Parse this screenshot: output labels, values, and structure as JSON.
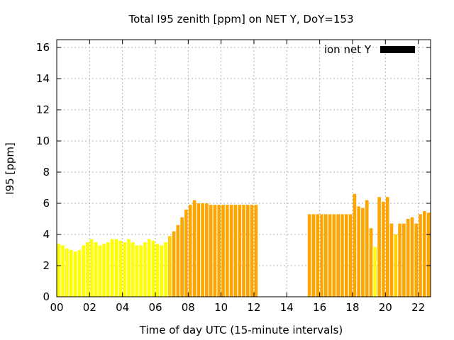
{
  "chart_data": {
    "type": "bar",
    "title": "Total I95 zenith [ppm] on NET Y, DoY=153",
    "xlabel": "Time of day UTC (15-minute intervals)",
    "ylabel": "I95 [ppm]",
    "xlim": [
      0,
      22.75
    ],
    "ylim": [
      0,
      16.5
    ],
    "xticks": [
      "00",
      "02",
      "04",
      "06",
      "08",
      "10",
      "12",
      "14",
      "16",
      "18",
      "20",
      "22"
    ],
    "yticks": [
      "0",
      "2",
      "4",
      "6",
      "8",
      "10",
      "12",
      "14",
      "16"
    ],
    "grid": true,
    "legend": {
      "label": "ion net Y",
      "position": "top-right"
    },
    "bar_width_hours": 0.2,
    "colors": {
      "yellow": "#ffff00",
      "lightorange": "#ffd000",
      "orange": "#ffa500",
      "legend_swatch": "#000000"
    },
    "bars": [
      {
        "x": 0.125,
        "y": 3.4,
        "c": "yellow"
      },
      {
        "x": 0.375,
        "y": 3.3,
        "c": "yellow"
      },
      {
        "x": 0.625,
        "y": 3.1,
        "c": "yellow"
      },
      {
        "x": 0.875,
        "y": 3.0,
        "c": "yellow"
      },
      {
        "x": 1.125,
        "y": 2.9,
        "c": "yellow"
      },
      {
        "x": 1.375,
        "y": 3.0,
        "c": "yellow"
      },
      {
        "x": 1.625,
        "y": 3.3,
        "c": "yellow"
      },
      {
        "x": 1.875,
        "y": 3.5,
        "c": "yellow"
      },
      {
        "x": 2.125,
        "y": 3.7,
        "c": "yellow"
      },
      {
        "x": 2.375,
        "y": 3.5,
        "c": "yellow"
      },
      {
        "x": 2.625,
        "y": 3.3,
        "c": "yellow"
      },
      {
        "x": 2.875,
        "y": 3.4,
        "c": "yellow"
      },
      {
        "x": 3.125,
        "y": 3.5,
        "c": "yellow"
      },
      {
        "x": 3.375,
        "y": 3.7,
        "c": "yellow"
      },
      {
        "x": 3.625,
        "y": 3.7,
        "c": "yellow"
      },
      {
        "x": 3.875,
        "y": 3.6,
        "c": "yellow"
      },
      {
        "x": 4.125,
        "y": 3.5,
        "c": "yellow"
      },
      {
        "x": 4.375,
        "y": 3.7,
        "c": "yellow"
      },
      {
        "x": 4.625,
        "y": 3.5,
        "c": "yellow"
      },
      {
        "x": 4.875,
        "y": 3.3,
        "c": "yellow"
      },
      {
        "x": 5.125,
        "y": 3.3,
        "c": "yellow"
      },
      {
        "x": 5.375,
        "y": 3.5,
        "c": "yellow"
      },
      {
        "x": 5.625,
        "y": 3.7,
        "c": "yellow"
      },
      {
        "x": 5.875,
        "y": 3.6,
        "c": "yellow"
      },
      {
        "x": 6.125,
        "y": 3.4,
        "c": "yellow"
      },
      {
        "x": 6.375,
        "y": 3.3,
        "c": "yellow"
      },
      {
        "x": 6.625,
        "y": 3.5,
        "c": "yellow"
      },
      {
        "x": 6.875,
        "y": 3.9,
        "c": "lightorange"
      },
      {
        "x": 7.125,
        "y": 4.2,
        "c": "orange"
      },
      {
        "x": 7.375,
        "y": 4.6,
        "c": "orange"
      },
      {
        "x": 7.625,
        "y": 5.1,
        "c": "orange"
      },
      {
        "x": 7.875,
        "y": 5.6,
        "c": "orange"
      },
      {
        "x": 8.125,
        "y": 5.9,
        "c": "orange"
      },
      {
        "x": 8.375,
        "y": 6.2,
        "c": "orange"
      },
      {
        "x": 8.625,
        "y": 6.0,
        "c": "orange"
      },
      {
        "x": 8.875,
        "y": 6.0,
        "c": "orange"
      },
      {
        "x": 9.125,
        "y": 6.0,
        "c": "orange"
      },
      {
        "x": 9.375,
        "y": 5.9,
        "c": "orange"
      },
      {
        "x": 9.625,
        "y": 5.9,
        "c": "orange"
      },
      {
        "x": 9.875,
        "y": 5.9,
        "c": "orange"
      },
      {
        "x": 10.125,
        "y": 5.9,
        "c": "orange"
      },
      {
        "x": 10.375,
        "y": 5.9,
        "c": "orange"
      },
      {
        "x": 10.625,
        "y": 5.9,
        "c": "orange"
      },
      {
        "x": 10.875,
        "y": 5.9,
        "c": "orange"
      },
      {
        "x": 11.125,
        "y": 5.9,
        "c": "orange"
      },
      {
        "x": 11.375,
        "y": 5.9,
        "c": "orange"
      },
      {
        "x": 11.625,
        "y": 5.9,
        "c": "orange"
      },
      {
        "x": 11.875,
        "y": 5.9,
        "c": "orange"
      },
      {
        "x": 12.125,
        "y": 5.9,
        "c": "orange"
      },
      {
        "x": 15.375,
        "y": 5.3,
        "c": "orange"
      },
      {
        "x": 15.625,
        "y": 5.3,
        "c": "orange"
      },
      {
        "x": 15.875,
        "y": 5.3,
        "c": "orange"
      },
      {
        "x": 16.125,
        "y": 5.3,
        "c": "orange"
      },
      {
        "x": 16.375,
        "y": 5.3,
        "c": "orange"
      },
      {
        "x": 16.625,
        "y": 5.3,
        "c": "orange"
      },
      {
        "x": 16.875,
        "y": 5.3,
        "c": "orange"
      },
      {
        "x": 17.125,
        "y": 5.3,
        "c": "orange"
      },
      {
        "x": 17.375,
        "y": 5.3,
        "c": "orange"
      },
      {
        "x": 17.625,
        "y": 5.3,
        "c": "orange"
      },
      {
        "x": 17.875,
        "y": 5.3,
        "c": "orange"
      },
      {
        "x": 18.125,
        "y": 6.6,
        "c": "orange"
      },
      {
        "x": 18.375,
        "y": 5.8,
        "c": "orange"
      },
      {
        "x": 18.625,
        "y": 5.7,
        "c": "orange"
      },
      {
        "x": 18.875,
        "y": 6.2,
        "c": "orange"
      },
      {
        "x": 19.125,
        "y": 4.4,
        "c": "orange"
      },
      {
        "x": 19.375,
        "y": 3.2,
        "c": "yellow"
      },
      {
        "x": 19.625,
        "y": 6.4,
        "c": "orange"
      },
      {
        "x": 19.875,
        "y": 6.1,
        "c": "orange"
      },
      {
        "x": 20.125,
        "y": 6.4,
        "c": "orange"
      },
      {
        "x": 20.375,
        "y": 4.7,
        "c": "orange"
      },
      {
        "x": 20.625,
        "y": 4.0,
        "c": "lightorange"
      },
      {
        "x": 20.875,
        "y": 4.7,
        "c": "orange"
      },
      {
        "x": 21.125,
        "y": 4.7,
        "c": "orange"
      },
      {
        "x": 21.375,
        "y": 5.0,
        "c": "orange"
      },
      {
        "x": 21.625,
        "y": 5.1,
        "c": "orange"
      },
      {
        "x": 21.875,
        "y": 4.7,
        "c": "orange"
      },
      {
        "x": 22.125,
        "y": 5.3,
        "c": "orange"
      },
      {
        "x": 22.375,
        "y": 5.5,
        "c": "orange"
      },
      {
        "x": 22.625,
        "y": 5.4,
        "c": "orange"
      }
    ]
  }
}
